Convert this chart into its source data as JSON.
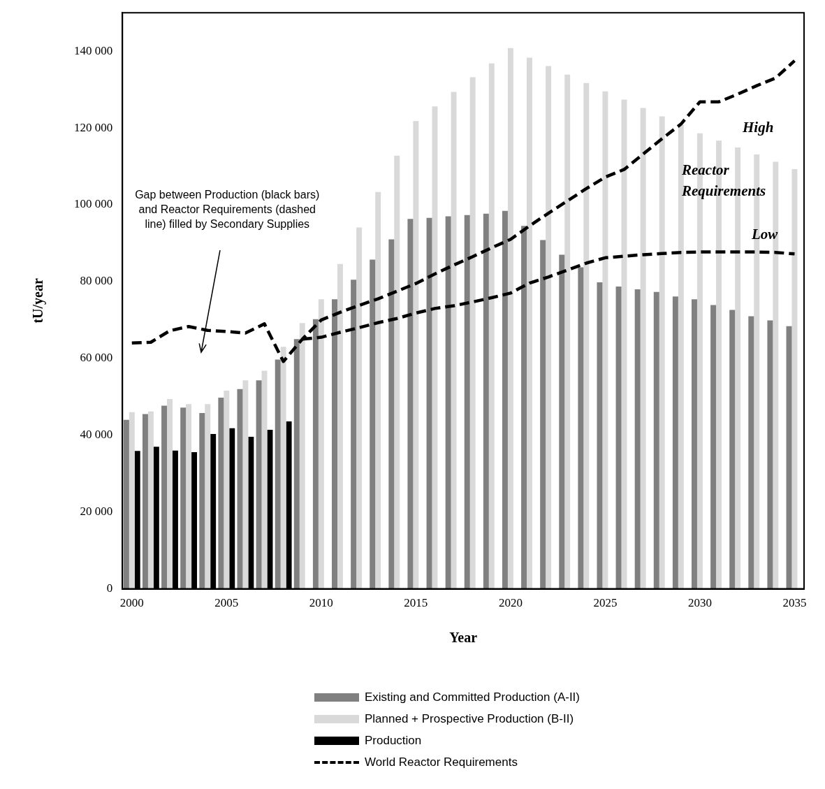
{
  "chart_data": {
    "type": "bar",
    "xlabel": "Year",
    "ylabel": "tU/year",
    "categories": [
      "2000",
      null,
      null,
      null,
      null,
      "2005",
      null,
      null,
      null,
      null,
      "2010",
      null,
      null,
      null,
      null,
      "2015",
      null,
      null,
      null,
      null,
      "2020",
      null,
      null,
      null,
      null,
      "2025",
      null,
      null,
      null,
      null,
      "2030",
      null,
      null,
      null,
      null,
      "2035"
    ],
    "series": [
      {
        "name": "Existing and Committed Production (A-II)",
        "color": "#808080",
        "values": [
          44000,
          45500,
          47700,
          47200,
          45800,
          49800,
          52000,
          54300,
          59700,
          65000,
          70200,
          75400,
          80500,
          85700,
          91000,
          96300,
          96600,
          97000,
          97300,
          97700,
          98400,
          94500,
          90800,
          87000,
          83700,
          79800,
          78700,
          78000,
          77300,
          76100,
          75400,
          73900,
          72600,
          71000,
          69900,
          68400
        ]
      },
      {
        "name": "Planned + Prospective Production (B-II)",
        "color": "#d9d9d9",
        "values": [
          46000,
          46200,
          49400,
          48100,
          48100,
          51600,
          54300,
          56800,
          63000,
          69200,
          75400,
          84600,
          94100,
          103300,
          112800,
          121800,
          125600,
          129400,
          133200,
          136800,
          140800,
          138300,
          136100,
          133900,
          131700,
          129500,
          127400,
          125200,
          123000,
          120800,
          118600,
          116700,
          114900,
          113100,
          111200,
          109300
        ]
      },
      {
        "name": "Production",
        "color": "#000000",
        "values": [
          35900,
          37000,
          36000,
          35600,
          40300,
          41800,
          39600,
          41400,
          43600,
          null,
          null,
          null,
          null,
          null,
          null,
          null,
          null,
          null,
          null,
          null,
          null,
          null,
          null,
          null,
          null,
          null,
          null,
          null,
          null,
          null,
          null,
          null,
          null,
          null,
          null,
          null
        ]
      },
      {
        "name": "World Reactor Requirements",
        "type": "line",
        "color": "#000000",
        "line_style": "dashed",
        "marker": "none",
        "values": [
          64000,
          64200,
          67200,
          68300,
          67300,
          67000,
          66600,
          69000,
          59200,
          65000,
          70000,
          72000,
          73800,
          75500,
          77500,
          79500,
          82000,
          84300,
          86500,
          88800,
          91000,
          94500,
          97800,
          101000,
          104200,
          107200,
          109200,
          113200,
          117200,
          121000,
          126800,
          126800,
          128800,
          131000,
          133000,
          137500
        ]
      },
      {
        "type": "line",
        "color": "#000000",
        "line_style": "dashed",
        "marker": "none",
        "values": [
          null,
          null,
          null,
          null,
          null,
          null,
          null,
          null,
          null,
          65000,
          65500,
          66800,
          68000,
          69300,
          70400,
          71800,
          73000,
          73700,
          74700,
          75800,
          77000,
          79600,
          81200,
          83000,
          84800,
          86200,
          86600,
          87000,
          87300,
          87600,
          87700,
          87700,
          87700,
          87700,
          87600,
          87200
        ]
      }
    ],
    "ylim": [
      0,
      150000
    ],
    "yticks": [
      0,
      {
        "value": 20000,
        "label": "20 000"
      },
      {
        "value": 40000,
        "label": "40 000"
      },
      {
        "value": 60000,
        "label": "60 000"
      },
      {
        "value": 80000,
        "label": "80 000"
      },
      {
        "value": 100000,
        "label": "100 000"
      },
      {
        "value": 120000,
        "label": "120 000"
      },
      {
        "value": 140000,
        "label": "140 000"
      }
    ],
    "legend": "bottom",
    "annotations": [
      "Gap between Production (black bars) and Reactor Requirements (dashed line) filled by Secondary Supplies",
      "High",
      "Reactor Requirements",
      "Low"
    ]
  }
}
